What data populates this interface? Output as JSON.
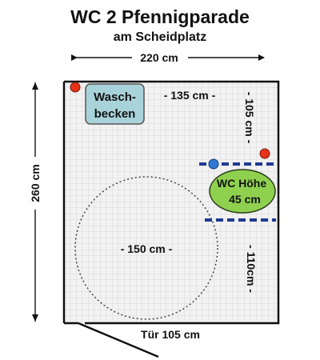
{
  "title": "WC 2 Pfennigparade",
  "subtitle": "am Scheidplatz",
  "dimensions": {
    "width": "220 cm",
    "height": "260 cm",
    "washbasin_distance": "- 135 cm -",
    "upper_right_distance": "- 105 cm -",
    "lower_right_distance": "- 110cm -",
    "turning_circle": "- 150 cm -",
    "door": "Tür 105 cm"
  },
  "washbasin": {
    "line1": "Wasch-",
    "line2": "becken"
  },
  "toilet": {
    "line1": "WC Höhe",
    "line2": "45 cm"
  },
  "colors": {
    "wall": "#111111",
    "floor": "#f2f2f2",
    "grid": "#d2d2d2",
    "washbasin_fill": "#a9d3da",
    "toilet_fill": "#8fd14f",
    "grab_bar": "#1f3a93",
    "red_marker": "#e8321a",
    "blue_marker": "#2f79d6"
  }
}
